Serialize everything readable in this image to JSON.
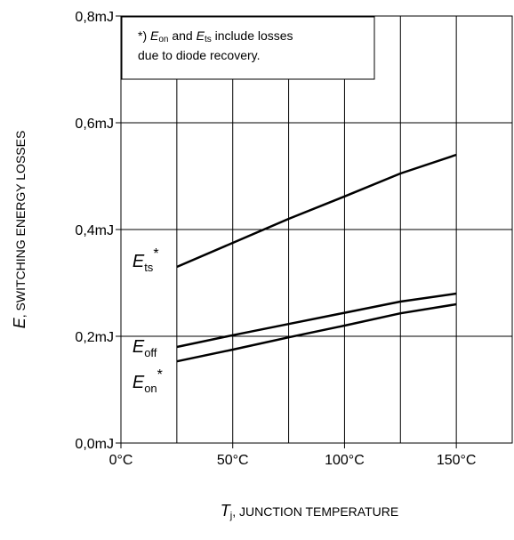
{
  "chart_data": {
    "type": "line",
    "title": "",
    "xlabel": {
      "symbol": "T",
      "subscript": "j",
      "text": ", JUNCTION TEMPERATURE"
    },
    "ylabel": {
      "symbol": "E",
      "text": ", SWITCHING ENERGY LOSSES"
    },
    "xlim": [
      0,
      175
    ],
    "ylim": [
      0,
      0.8
    ],
    "xticks": [
      0,
      50,
      100,
      150
    ],
    "xtick_labels": [
      "0°C",
      "50°C",
      "100°C",
      "150°C"
    ],
    "xgrid": [
      25,
      50,
      75,
      100,
      125,
      150
    ],
    "yticks": [
      0,
      0.2,
      0.4,
      0.6,
      0.8
    ],
    "ytick_labels": [
      "0,0mJ",
      "0,2mJ",
      "0,4mJ",
      "0,6mJ",
      "0,8mJ"
    ],
    "grid": true,
    "series": [
      {
        "name": "Ets*",
        "label_main": "E",
        "label_sub": "ts",
        "label_sup": "*",
        "x": [
          25,
          50,
          75,
          100,
          125,
          150
        ],
        "y": [
          0.33,
          0.375,
          0.42,
          0.462,
          0.505,
          0.54
        ]
      },
      {
        "name": "Eoff",
        "label_main": "E",
        "label_sub": "off",
        "label_sup": "",
        "x": [
          25,
          50,
          75,
          100,
          125,
          150
        ],
        "y": [
          0.18,
          0.202,
          0.223,
          0.244,
          0.265,
          0.28
        ]
      },
      {
        "name": "Eon*",
        "label_main": "E",
        "label_sub": "on",
        "label_sup": "*",
        "x": [
          25,
          50,
          75,
          100,
          125,
          150
        ],
        "y": [
          0.153,
          0.175,
          0.198,
          0.22,
          0.243,
          0.26
        ]
      }
    ],
    "annotation": {
      "line1_prefix": "*) ",
      "e_on_main": "E",
      "e_on_sub": "on",
      "middle": " and ",
      "e_ts_main": "E",
      "e_ts_sub": "ts",
      "line1_suffix": " include losses",
      "line2": "due to diode recovery."
    }
  }
}
